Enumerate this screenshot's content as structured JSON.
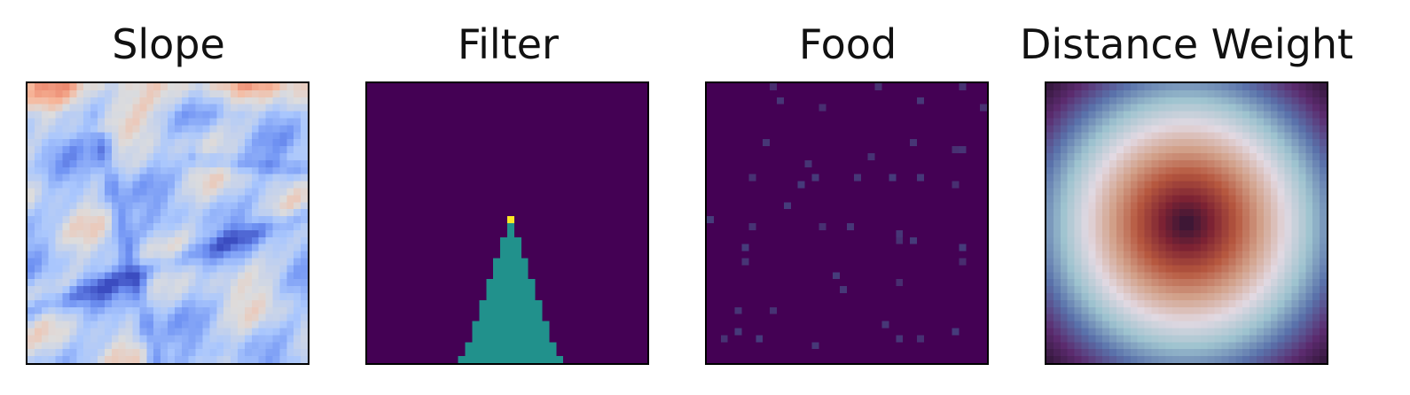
{
  "chart_data": [
    {
      "type": "heatmap",
      "title": "Slope",
      "colormap": "coolwarm",
      "colors": [
        "#3b4cc0",
        "#6f92f3",
        "#aac7fd",
        "#dddcdc",
        "#f7b89c",
        "#e7745b"
      ],
      "grid_shape": [
        40,
        40
      ],
      "axes_ticks": false
    },
    {
      "type": "heatmap",
      "title": "Filter",
      "colormap": "viridis",
      "colors": [
        "#440154",
        "#21918c",
        "#fde725"
      ],
      "grid_shape": [
        40,
        40
      ],
      "apex_cell": [
        19,
        20
      ],
      "apex_value": 1.0,
      "wedge_value": 0.5,
      "background_value": 0.0,
      "axes_ticks": false
    },
    {
      "type": "heatmap",
      "title": "Food",
      "colormap": "viridis",
      "colors": [
        "#440154",
        "#482d6f",
        "#463d7c"
      ],
      "grid_shape": [
        40,
        40
      ],
      "axes_ticks": false
    },
    {
      "type": "heatmap",
      "title": "Distance Weight",
      "colormap": "twilight_shifted",
      "colors": [
        "#2f1436",
        "#5b2b6e",
        "#5a72ab",
        "#9ec3cf",
        "#e2d9e2",
        "#d2a18a",
        "#b6573e",
        "#7c2233",
        "#2f1436"
      ],
      "grid_shape": [
        40,
        40
      ],
      "axes_ticks": false
    }
  ]
}
